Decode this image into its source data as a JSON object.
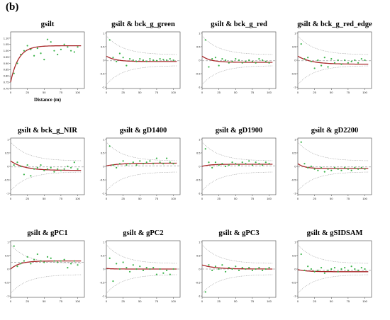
{
  "figure_label": "(b)",
  "colors": {
    "model": "#a8282a",
    "points": "#3cb44b",
    "envelope": "#a0a0a0",
    "sill": "#a0a0a0"
  },
  "chart_data": [
    {
      "type": "scatter",
      "title": "gsilt",
      "xlabel": "Distance (m)",
      "ylabel": "",
      "xlim": [
        0,
        110
      ],
      "ylim": [
        0.7,
        1.15
      ],
      "xticks": [
        "0",
        "25",
        "50",
        "75",
        "100"
      ],
      "yticks": [
        "0.70",
        "0.75",
        "0.80",
        "0.85",
        "0.90",
        "0.95",
        "1.00",
        "1.05",
        "1.10"
      ],
      "x": [
        5,
        10,
        15,
        20,
        25,
        30,
        35,
        40,
        45,
        50,
        55,
        60,
        65,
        70,
        75,
        80,
        85,
        90,
        95,
        100
      ],
      "y": [
        0.82,
        0.9,
        0.97,
        1.0,
        1.04,
        1.01,
        0.96,
        1.02,
        0.98,
        0.93,
        1.09,
        1.07,
        1.0,
        0.97,
        1.01,
        1.05,
        1.03,
        1.0,
        0.99,
        1.03
      ],
      "model": {
        "nugget": 0.75,
        "sill": 1.04,
        "range": 35
      },
      "envelope": null,
      "sill_line": null
    },
    {
      "type": "scatter",
      "title": "gsilt & bck_g_green",
      "xlabel": "",
      "ylabel": "",
      "xlim": [
        0,
        110
      ],
      "ylim": [
        -1.05,
        1.05
      ],
      "xticks": [
        "0",
        "25",
        "50",
        "75",
        "100"
      ],
      "yticks": [
        "-1",
        "-0.5",
        "0",
        "0.5",
        "1"
      ],
      "x": [
        5,
        10,
        15,
        20,
        25,
        30,
        35,
        40,
        45,
        50,
        55,
        60,
        65,
        70,
        75,
        80,
        85,
        90,
        95,
        100
      ],
      "y": [
        0.75,
        0.1,
        -0.05,
        0.25,
        0.1,
        -0.2,
        0.05,
        0.0,
        -0.05,
        0.05,
        0.0,
        -0.05,
        0.05,
        0.0,
        -0.02,
        0.05,
        0.02,
        0.0,
        0.05,
        0.0
      ],
      "model": {
        "nugget": 0.15,
        "sill": -0.05,
        "range": 40
      },
      "envelope": {
        "inner": 0.2,
        "outer": 0.9
      },
      "sill_line": -0.02
    },
    {
      "type": "scatter",
      "title": "gsilt & bck_g_red",
      "xlabel": "",
      "ylabel": "",
      "xlim": [
        0,
        110
      ],
      "ylim": [
        -1.05,
        1.05
      ],
      "xticks": [
        "0",
        "25",
        "50",
        "75",
        "100"
      ],
      "yticks": [
        "-1",
        "-0.5",
        "0",
        "0.5",
        "1"
      ],
      "x": [
        5,
        10,
        15,
        20,
        25,
        30,
        35,
        40,
        45,
        50,
        55,
        60,
        65,
        70,
        75,
        80,
        85,
        90,
        95,
        100
      ],
      "y": [
        0.75,
        -0.25,
        0.05,
        0.1,
        -0.2,
        0.05,
        0.0,
        -0.1,
        -0.05,
        0.05,
        0.0,
        -0.1,
        -0.05,
        0.0,
        -0.05,
        -0.1,
        0.05,
        0.0,
        -0.05,
        -0.1
      ],
      "model": {
        "nugget": 0.15,
        "sill": -0.08,
        "range": 40
      },
      "envelope": {
        "inner": 0.2,
        "outer": 0.9
      },
      "sill_line": -0.02
    },
    {
      "type": "scatter",
      "title": "gsilt & bck_g_red_edge",
      "xlabel": "",
      "ylabel": "",
      "xlim": [
        0,
        110
      ],
      "ylim": [
        -1.05,
        1.05
      ],
      "xticks": [
        "0",
        "25",
        "50",
        "75",
        "100"
      ],
      "yticks": [
        "-1",
        "-0.5",
        "0",
        "0.5",
        "1"
      ],
      "x": [
        5,
        10,
        15,
        20,
        25,
        30,
        35,
        40,
        45,
        50,
        55,
        60,
        65,
        70,
        75,
        80,
        85,
        90,
        95,
        100
      ],
      "y": [
        0.6,
        0.05,
        0.1,
        -0.05,
        -0.3,
        0.0,
        -0.2,
        0.1,
        -0.25,
        0.05,
        -0.1,
        0.0,
        -0.15,
        0.0,
        -0.1,
        -0.05,
        0.0,
        -0.1,
        0.05,
        0.0
      ],
      "model": {
        "nugget": 0.15,
        "sill": -0.15,
        "range": 60
      },
      "envelope": {
        "inner": 0.2,
        "outer": 0.9
      },
      "sill_line": -0.02
    },
    {
      "type": "scatter",
      "title": "gsilt & bck_g_NIR",
      "xlabel": "",
      "ylabel": "",
      "xlim": [
        0,
        110
      ],
      "ylim": [
        -1.05,
        1.05
      ],
      "xticks": [
        "0",
        "25",
        "50",
        "75",
        "100"
      ],
      "yticks": [
        "-1",
        "-0.5",
        "0",
        "0.5",
        "1"
      ],
      "x": [
        5,
        10,
        15,
        20,
        25,
        30,
        35,
        40,
        45,
        50,
        55,
        60,
        65,
        70,
        75,
        80,
        85,
        90,
        95,
        100
      ],
      "y": [
        0.05,
        0.15,
        0.0,
        -0.3,
        0.05,
        -0.35,
        -0.1,
        -0.05,
        0.05,
        -0.15,
        -0.1,
        -0.05,
        -0.2,
        -0.1,
        -0.15,
        -0.1,
        0.0,
        -0.05,
        0.15,
        -0.1
      ],
      "model": {
        "nugget": 0.2,
        "sill": -0.15,
        "range": 60
      },
      "envelope": {
        "inner": 0.2,
        "outer": 0.9
      },
      "sill_line": -0.02
    },
    {
      "type": "scatter",
      "title": "gsilt & gD1400",
      "xlabel": "",
      "ylabel": "",
      "xlim": [
        0,
        110
      ],
      "ylim": [
        -1.05,
        1.05
      ],
      "xticks": [
        "0",
        "25",
        "50",
        "75",
        "100"
      ],
      "yticks": [
        "-1",
        "-0.5",
        "0",
        "0.5",
        "1"
      ],
      "x": [
        5,
        10,
        15,
        20,
        25,
        30,
        35,
        40,
        45,
        50,
        55,
        60,
        65,
        70,
        75,
        80,
        85,
        90,
        95,
        100
      ],
      "y": [
        0.75,
        0.05,
        -0.05,
        0.1,
        0.2,
        0.05,
        0.1,
        0.15,
        0.05,
        0.2,
        0.1,
        0.15,
        0.2,
        0.1,
        0.3,
        0.15,
        0.1,
        0.3,
        0.15,
        0.1
      ],
      "model": {
        "nugget": 0.02,
        "sill": 0.12,
        "range": 60
      },
      "envelope": {
        "inner": 0.2,
        "outer": 0.9
      },
      "sill_line": 0.02
    },
    {
      "type": "scatter",
      "title": "gsilt & gD1900",
      "xlabel": "",
      "ylabel": "",
      "xlim": [
        0,
        110
      ],
      "ylim": [
        -1.05,
        1.05
      ],
      "xticks": [
        "0",
        "25",
        "50",
        "75",
        "100"
      ],
      "yticks": [
        "-1",
        "-0.5",
        "0",
        "0.5",
        "1"
      ],
      "x": [
        5,
        10,
        15,
        20,
        25,
        30,
        35,
        40,
        45,
        50,
        55,
        60,
        65,
        70,
        75,
        80,
        85,
        90,
        95,
        100
      ],
      "y": [
        0.65,
        0.15,
        -0.05,
        0.15,
        0.05,
        0.1,
        0.0,
        0.05,
        0.15,
        0.1,
        0.05,
        0.15,
        0.1,
        0.2,
        0.05,
        0.15,
        0.1,
        0.05,
        0.15,
        0.1
      ],
      "model": {
        "nugget": 0.0,
        "sill": 0.08,
        "range": 35
      },
      "envelope": {
        "inner": 0.2,
        "outer": 0.9
      },
      "sill_line": 0.02
    },
    {
      "type": "scatter",
      "title": "gsilt & gD2200",
      "xlabel": "",
      "ylabel": "",
      "xlim": [
        0,
        110
      ],
      "ylim": [
        -1.05,
        1.05
      ],
      "xticks": [
        "0",
        "25",
        "50",
        "75",
        "100"
      ],
      "yticks": [
        "-1",
        "-0.5",
        "0",
        "0.5",
        "1"
      ],
      "x": [
        5,
        10,
        15,
        20,
        25,
        30,
        35,
        40,
        45,
        50,
        55,
        60,
        65,
        70,
        75,
        80,
        85,
        90,
        95,
        100
      ],
      "y": [
        0.9,
        0.1,
        -0.05,
        0.0,
        -0.1,
        -0.15,
        -0.05,
        -0.2,
        -0.1,
        -0.15,
        -0.05,
        -0.1,
        -0.15,
        -0.05,
        -0.1,
        -0.15,
        -0.05,
        -0.1,
        -0.05,
        -0.1
      ],
      "model": {
        "nugget": 0.1,
        "sill": -0.08,
        "range": 30
      },
      "envelope": {
        "inner": 0.2,
        "outer": 0.9
      },
      "sill_line": -0.02
    },
    {
      "type": "scatter",
      "title": "gsilt & gPC1",
      "xlabel": "",
      "ylabel": "",
      "xlim": [
        0,
        110
      ],
      "ylim": [
        -1.05,
        1.05
      ],
      "xticks": [
        "0",
        "25",
        "50",
        "75",
        "100"
      ],
      "yticks": [
        "-1",
        "-0.5",
        "0",
        "0.5",
        "1"
      ],
      "x": [
        5,
        10,
        15,
        20,
        25,
        30,
        35,
        40,
        45,
        50,
        55,
        60,
        65,
        70,
        75,
        80,
        85,
        90,
        95,
        100
      ],
      "y": [
        0.85,
        0.1,
        0.2,
        0.3,
        0.45,
        0.2,
        0.35,
        0.55,
        0.3,
        0.25,
        0.45,
        0.4,
        0.3,
        0.25,
        0.3,
        0.35,
        0.05,
        0.2,
        0.3,
        0.15
      ],
      "model": {
        "nugget": 0.0,
        "sill": 0.3,
        "range": 40
      },
      "envelope": {
        "inner": 0.2,
        "outer": 0.9
      },
      "sill_line": 0.25
    },
    {
      "type": "scatter",
      "title": "gsilt & gPC2",
      "xlabel": "",
      "ylabel": "",
      "xlim": [
        0,
        110
      ],
      "ylim": [
        -1.05,
        1.05
      ],
      "xticks": [
        "0",
        "25",
        "50",
        "75",
        "100"
      ],
      "yticks": [
        "-1",
        "-0.5",
        "0",
        "0.5",
        "1"
      ],
      "x": [
        5,
        10,
        15,
        20,
        25,
        30,
        35,
        40,
        45,
        50,
        55,
        60,
        65,
        70,
        75,
        80,
        85,
        90,
        95,
        100
      ],
      "y": [
        0.4,
        -0.45,
        0.2,
        0.0,
        0.25,
        0.05,
        -0.1,
        0.15,
        0.0,
        0.1,
        -0.05,
        0.05,
        0.0,
        0.05,
        -0.2,
        0.0,
        -0.15,
        -0.05,
        -0.2,
        0.0
      ],
      "model": {
        "nugget": 0.02,
        "sill": 0.0,
        "range": 30
      },
      "envelope": {
        "inner": 0.2,
        "outer": 0.9
      },
      "sill_line": 0.0
    },
    {
      "type": "scatter",
      "title": "gsilt & gPC3",
      "xlabel": "",
      "ylabel": "",
      "xlim": [
        0,
        110
      ],
      "ylim": [
        -1.05,
        1.05
      ],
      "xticks": [
        "0",
        "25",
        "50",
        "75",
        "100"
      ],
      "yticks": [
        "-1",
        "-0.5",
        "0",
        "0.5",
        "1"
      ],
      "x": [
        5,
        10,
        15,
        20,
        25,
        30,
        35,
        40,
        45,
        50,
        55,
        60,
        65,
        70,
        75,
        80,
        85,
        90,
        95,
        100
      ],
      "y": [
        -0.85,
        0.15,
        -0.05,
        0.1,
        0.0,
        0.15,
        -0.1,
        0.05,
        0.0,
        0.1,
        -0.05,
        0.05,
        0.0,
        0.05,
        -0.05,
        0.0,
        0.05,
        -0.05,
        0.0,
        0.05
      ],
      "model": {
        "nugget": 0.15,
        "sill": 0.0,
        "range": 60
      },
      "envelope": {
        "inner": 0.2,
        "outer": 0.9
      },
      "sill_line": 0.0
    },
    {
      "type": "scatter",
      "title": "gsilt & gSIDSAM",
      "xlabel": "",
      "ylabel": "",
      "xlim": [
        0,
        110
      ],
      "ylim": [
        -1.05,
        1.05
      ],
      "xticks": [
        "0",
        "25",
        "50",
        "75",
        "100"
      ],
      "yticks": [
        "-1",
        "-0.5",
        "0",
        "0.5",
        "1"
      ],
      "x": [
        5,
        10,
        15,
        20,
        25,
        30,
        35,
        40,
        45,
        50,
        55,
        60,
        65,
        70,
        75,
        80,
        85,
        90,
        95,
        100
      ],
      "y": [
        0.55,
        -0.05,
        0.1,
        0.0,
        -0.1,
        -0.05,
        0.05,
        -0.15,
        -0.05,
        0.0,
        0.05,
        -0.1,
        0.0,
        0.05,
        -0.05,
        0.1,
        0.0,
        -0.05,
        0.05,
        0.0
      ],
      "model": {
        "nugget": -0.02,
        "sill": -0.1,
        "range": 40
      },
      "envelope": {
        "inner": 0.2,
        "outer": 0.9
      },
      "sill_line": -0.05
    }
  ]
}
